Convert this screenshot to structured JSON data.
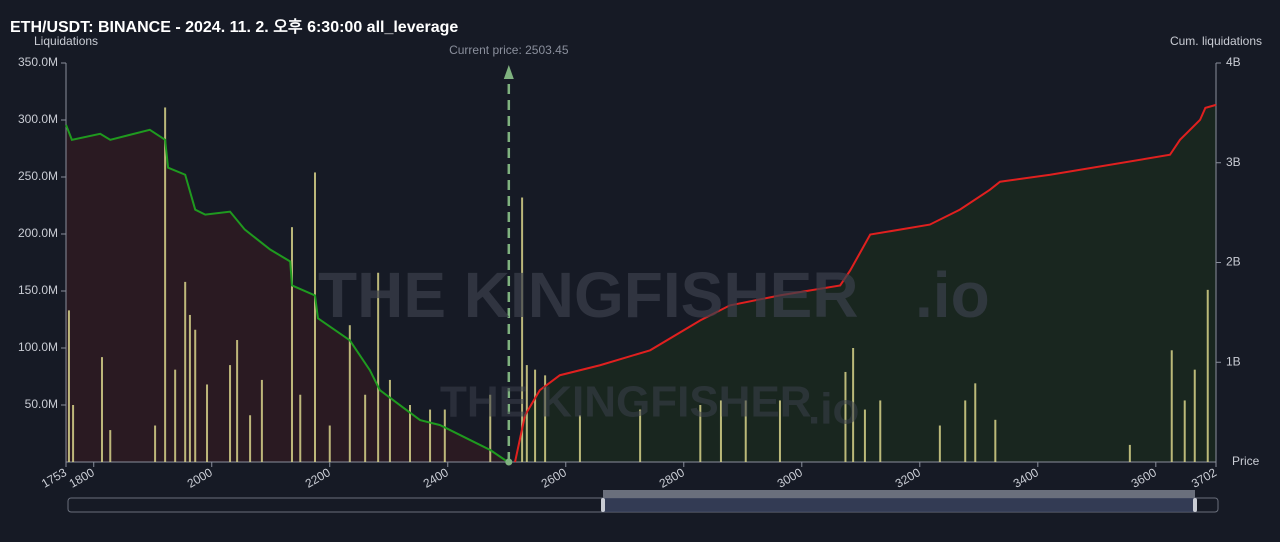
{
  "chart_data": {
    "type": "liquidation-map",
    "title": "ETH/USDT: BINANCE - 2024. 11. 2. 오후 6:30:00 all_leverage",
    "y_label": "Liquidations",
    "y2_label": "Cum. liquidations",
    "x_label": "Price",
    "annotation": "Current price: 2503.45",
    "current_price": 2503.45,
    "watermark": "THE KINGFISHER",
    "watermark_suffix": ".io",
    "xlim": [
      1753,
      3702
    ],
    "xticks": [
      1753,
      1800,
      2000,
      2200,
      2400,
      2600,
      2800,
      3000,
      3200,
      3400,
      3600,
      3702
    ],
    "ylim": [
      0,
      350000000
    ],
    "yticks": [
      {
        "value": 50000000,
        "label": "50.0M"
      },
      {
        "value": 100000000,
        "label": "100.0M"
      },
      {
        "value": 150000000,
        "label": "150.0M"
      },
      {
        "value": 200000000,
        "label": "200.0M"
      },
      {
        "value": 250000000,
        "label": "250.0M"
      },
      {
        "value": 300000000,
        "label": "300.0M"
      },
      {
        "value": 350000000,
        "label": "350.0M"
      }
    ],
    "y2lim": [
      0,
      4000000000
    ],
    "y2ticks": [
      {
        "value": 1000000000,
        "label": "1B"
      },
      {
        "value": 2000000000,
        "label": "2B"
      },
      {
        "value": 3000000000,
        "label": "3B"
      },
      {
        "value": 4000000000,
        "label": "4B"
      }
    ],
    "series": [
      {
        "kind": "bar",
        "color": "#d8d48a",
        "x": [
          1758,
          1765,
          1814,
          1828,
          1904,
          1921,
          1938,
          1955,
          1963,
          1972,
          1992,
          2031,
          2043,
          2065,
          2085,
          2136,
          2150,
          2175,
          2200,
          2234,
          2260,
          2282,
          2302,
          2336,
          2370,
          2395,
          2472,
          2526,
          2534,
          2548,
          2565,
          2624,
          2726,
          2828,
          2863,
          2905,
          2963,
          3074,
          3087,
          3107,
          3133,
          3234,
          3277,
          3294,
          3328,
          3556,
          3627,
          3649,
          3666,
          3688
        ],
        "values": [
          133000000,
          50000000,
          92000000,
          28000000,
          32000000,
          311000000,
          81000000,
          158000000,
          129000000,
          116000000,
          68000000,
          85000000,
          107000000,
          41000000,
          72000000,
          206000000,
          59000000,
          254000000,
          32000000,
          120000000,
          59000000,
          166000000,
          72000000,
          50000000,
          46000000,
          46000000,
          59000000,
          232000000,
          85000000,
          81000000,
          76000000,
          41000000,
          46000000,
          50000000,
          54000000,
          54000000,
          54000000,
          79000000,
          100000000,
          46000000,
          54000000,
          32000000,
          54000000,
          69000000,
          37000000,
          15000000,
          98000000,
          54000000,
          81000000,
          151000000
        ]
      },
      {
        "kind": "line",
        "axis": "y2",
        "color": "#1f9a1f",
        "fill": "#2b1a22",
        "x": [
          1753,
          1763,
          1811,
          1828,
          1895,
          1921,
          1926,
          1955,
          1972,
          1989,
          2031,
          2056,
          2099,
          2133,
          2136,
          2175,
          2180,
          2234,
          2268,
          2285,
          2319,
          2353,
          2387,
          2438,
          2472,
          2502
        ],
        "values": [
          3380000000,
          3230000000,
          3290000000,
          3230000000,
          3330000000,
          3230000000,
          2950000000,
          2880000000,
          2530000000,
          2480000000,
          2510000000,
          2330000000,
          2130000000,
          2010000000,
          1770000000,
          1670000000,
          1440000000,
          1220000000,
          920000000,
          720000000,
          570000000,
          420000000,
          370000000,
          220000000,
          120000000,
          0
        ]
      },
      {
        "kind": "line",
        "axis": "y2",
        "color": "#e0201f",
        "fill": "#19271f",
        "x": [
          2514,
          2531,
          2556,
          2590,
          2658,
          2743,
          2828,
          2878,
          2963,
          3065,
          3082,
          3116,
          3217,
          3268,
          3319,
          3336,
          3421,
          3624,
          3641,
          3675,
          3684,
          3702
        ],
        "values": [
          0,
          470000000,
          720000000,
          870000000,
          970000000,
          1120000000,
          1420000000,
          1570000000,
          1670000000,
          1770000000,
          1920000000,
          2280000000,
          2380000000,
          2530000000,
          2730000000,
          2810000000,
          2880000000,
          3080000000,
          3230000000,
          3430000000,
          3550000000,
          3580000000
        ]
      }
    ]
  }
}
